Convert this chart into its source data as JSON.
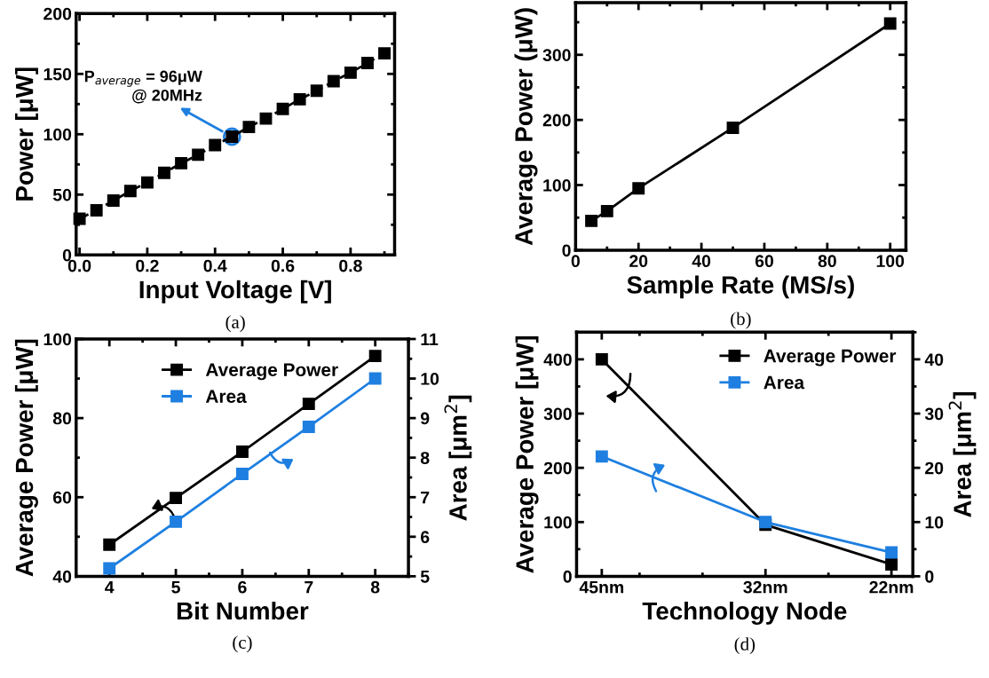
{
  "chart_data": [
    {
      "type": "line",
      "xlabel": "Input Voltage [V]",
      "ylabel": "Power [μW]",
      "x": [
        0,
        0.05,
        0.1,
        0.15,
        0.2,
        0.25,
        0.3,
        0.35,
        0.4,
        0.45,
        0.5,
        0.55,
        0.6,
        0.65,
        0.7,
        0.75,
        0.8,
        0.85,
        0.9
      ],
      "series": [
        {
          "color": "#000000",
          "line_style": "dashed",
          "values": [
            30,
            37,
            45,
            53,
            60,
            68,
            76,
            83,
            91,
            98,
            106,
            113,
            121,
            129,
            136,
            144,
            151,
            159,
            167
          ]
        }
      ],
      "xlim": [
        -0.01,
        0.93
      ],
      "xticks": [
        {
          "value": 0,
          "label": "0.0"
        },
        0.2,
        0.4,
        0.6,
        0.8
      ],
      "ylim": [
        0,
        200
      ],
      "yticks": [
        0,
        50,
        100,
        150,
        200
      ],
      "marker": "square",
      "grid": false,
      "legend": false,
      "annotations": [
        {
          "text": "P$_{average}$ = 96μW\n@ 20MHz",
          "x": 0.45,
          "y": 98
        },
        "(a)"
      ]
    },
    {
      "type": "line",
      "xlabel": "Sample Rate (MS/s)",
      "ylabel": "Average Power (μW)",
      "x": [
        5,
        10,
        20,
        50,
        100
      ],
      "series": [
        {
          "color": "#000000",
          "values": [
            45,
            60,
            95,
            188,
            348
          ]
        }
      ],
      "xlim": [
        0,
        105
      ],
      "xticks": [
        0,
        20,
        40,
        60,
        80,
        100
      ],
      "ylim": [
        0,
        380
      ],
      "yticks": [
        0,
        100,
        200,
        300
      ],
      "marker": "square",
      "grid": false,
      "legend": false,
      "annotations": [
        "(b)"
      ]
    },
    {
      "type": "line",
      "xlabel": "Bit Number",
      "ylabel": "Average Power [μW]",
      "y2label": "Area [μm$^{2}$]",
      "x": [
        4,
        5,
        6,
        7,
        8
      ],
      "series": [
        {
          "name": "Average Power",
          "color": "#000000",
          "values": [
            48,
            59.8,
            71.5,
            83.6,
            95.7
          ]
        },
        {
          "name": "Area",
          "color": "#1e7fe0",
          "axis": "y2",
          "values": [
            5.2,
            6.38,
            7.59,
            8.78,
            10.0
          ]
        }
      ],
      "xlim": [
        3.5,
        8.5
      ],
      "xticks": [
        4,
        5,
        6,
        7,
        8
      ],
      "ylim": [
        40,
        100
      ],
      "yticks": [
        40,
        60,
        80,
        100
      ],
      "y2lim": [
        5,
        11
      ],
      "y2ticks": [
        5,
        6,
        7,
        8,
        9,
        10,
        11
      ],
      "marker": "square",
      "grid": false,
      "legend": "top",
      "annotations": [
        "(c)"
      ]
    },
    {
      "type": "line",
      "xlabel": "Technology Node",
      "ylabel": "Average Power [μW]",
      "y2label": "Area [μm$^{2}$]",
      "x": [
        45,
        32,
        22
      ],
      "series": [
        {
          "name": "Average Power",
          "color": "#000000",
          "values": [
            400,
            95,
            22
          ]
        },
        {
          "name": "Area",
          "color": "#1e7fe0",
          "axis": "y2",
          "values": [
            22.1,
            10.0,
            4.4
          ]
        }
      ],
      "xlim": [
        47,
        20.3
      ],
      "xticks": [
        {
          "value": 45,
          "label": "45nm"
        },
        {
          "value": 32,
          "label": "32nm"
        },
        {
          "value": 22,
          "label": "22nm"
        }
      ],
      "ylim": [
        0,
        450
      ],
      "yticks": [
        0,
        100,
        200,
        300,
        400
      ],
      "y2lim": [
        0,
        45
      ],
      "y2ticks": [
        0,
        10,
        20,
        30,
        40
      ],
      "marker": "square",
      "grid": false,
      "legend": "top right",
      "annotations": [
        "(d)"
      ]
    }
  ]
}
